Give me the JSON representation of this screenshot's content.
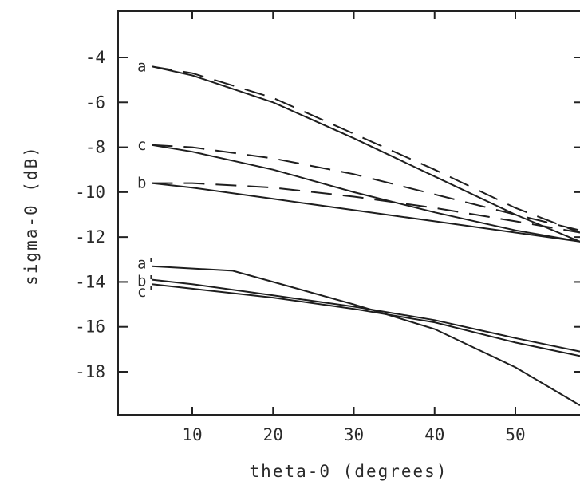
{
  "chart_data": {
    "type": "line",
    "title": "",
    "xlabel": "theta-0 (degrees)",
    "ylabel": "sigma-0 (dB)",
    "xlim": [
      5,
      58
    ],
    "ylim": [
      -19.5,
      -2.3
    ],
    "xticks": [
      10,
      20,
      30,
      40,
      50
    ],
    "yticks": [
      -4,
      -6,
      -8,
      -10,
      -12,
      -14,
      -16,
      -18
    ],
    "xtick_labels": [
      "10",
      "20",
      "30",
      "40",
      "50"
    ],
    "ytick_labels": [
      "-4",
      "-6",
      "-8",
      "-10",
      "-12",
      "-14",
      "-16",
      "-18"
    ],
    "grid": false,
    "series": [
      {
        "name": "a",
        "style": "solid",
        "x": [
          5,
          10,
          20,
          30,
          40,
          50,
          58
        ],
        "y": [
          -4.4,
          -4.8,
          -6.0,
          -7.6,
          -9.3,
          -11.0,
          -12.2
        ]
      },
      {
        "style": "dashed",
        "x": [
          5,
          10,
          20,
          30,
          40,
          50,
          58
        ],
        "y": [
          -4.4,
          -4.7,
          -5.8,
          -7.4,
          -9.0,
          -10.7,
          -11.8
        ]
      },
      {
        "name": "c",
        "style": "solid",
        "x": [
          5,
          10,
          20,
          30,
          40,
          50,
          58
        ],
        "y": [
          -7.9,
          -8.2,
          -9.0,
          -10.0,
          -10.9,
          -11.7,
          -12.2
        ]
      },
      {
        "style": "dashed",
        "x": [
          5,
          10,
          20,
          30,
          40,
          50,
          58
        ],
        "y": [
          -7.9,
          -8.0,
          -8.5,
          -9.2,
          -10.1,
          -11.0,
          -11.7
        ]
      },
      {
        "name": "b",
        "style": "solid",
        "x": [
          5,
          10,
          20,
          30,
          40,
          50,
          58
        ],
        "y": [
          -9.6,
          -9.8,
          -10.3,
          -10.8,
          -11.3,
          -11.8,
          -12.2
        ]
      },
      {
        "style": "dashed",
        "x": [
          5,
          10,
          20,
          30,
          40,
          50,
          58
        ],
        "y": [
          -9.6,
          -9.6,
          -9.8,
          -10.2,
          -10.7,
          -11.3,
          -11.8
        ]
      },
      {
        "name": "a'",
        "style": "solid",
        "x": [
          5,
          15,
          20,
          30,
          40,
          50,
          58
        ],
        "y": [
          -13.3,
          -13.5,
          -14.0,
          -15.0,
          -16.1,
          -17.8,
          -19.5
        ]
      },
      {
        "name": "b'",
        "style": "solid",
        "x": [
          5,
          10,
          20,
          30,
          40,
          50,
          58
        ],
        "y": [
          -13.9,
          -14.1,
          -14.6,
          -15.1,
          -15.7,
          -16.5,
          -17.1
        ]
      },
      {
        "name": "c'",
        "style": "solid",
        "x": [
          5,
          10,
          20,
          30,
          40,
          50,
          58
        ],
        "y": [
          -14.1,
          -14.3,
          -14.7,
          -15.2,
          -15.8,
          -16.7,
          -17.3
        ]
      }
    ],
    "curve_labels": [
      {
        "text": "a",
        "series": 0
      },
      {
        "text": "c",
        "series": 2
      },
      {
        "text": "b",
        "series": 4
      },
      {
        "text": "a'",
        "series": 6
      },
      {
        "text": "b'",
        "series": 7
      },
      {
        "text": "c'",
        "series": 8
      }
    ]
  }
}
